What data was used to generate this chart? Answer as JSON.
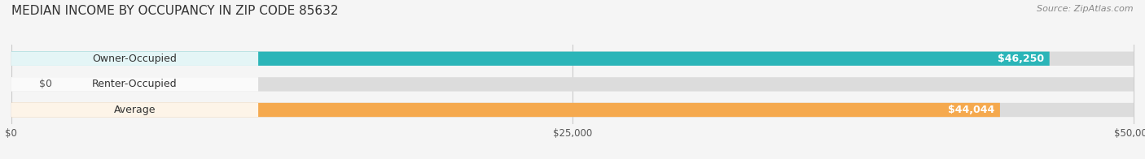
{
  "title": "MEDIAN INCOME BY OCCUPANCY IN ZIP CODE 85632",
  "source": "Source: ZipAtlas.com",
  "categories": [
    "Owner-Occupied",
    "Renter-Occupied",
    "Average"
  ],
  "values": [
    46250,
    0,
    44044
  ],
  "bar_colors": [
    "#2bb5b8",
    "#c9a8d4",
    "#f5a94e"
  ],
  "bar_bg_color": "#e8e8e8",
  "value_labels": [
    "$46,250",
    "$0",
    "$44,044"
  ],
  "xlim": [
    0,
    50000
  ],
  "xticks": [
    0,
    25000,
    50000
  ],
  "xtick_labels": [
    "$0",
    "$25,000",
    "$50,000"
  ],
  "bar_height": 0.55,
  "figsize": [
    14.06,
    1.96
  ],
  "dpi": 100,
  "title_fontsize": 11,
  "source_fontsize": 8,
  "label_fontsize": 9,
  "tick_fontsize": 8.5
}
